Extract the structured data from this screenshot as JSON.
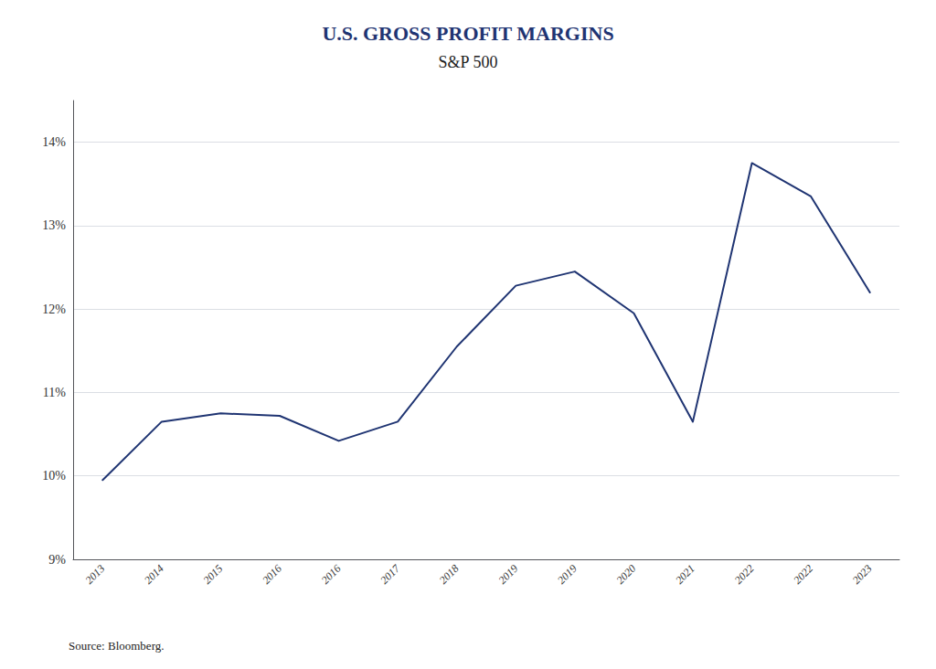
{
  "chart_data": {
    "type": "line",
    "title": "U.S. GROSS PROFIT MARGINS",
    "subtitle": "S&P 500",
    "annotations": [
      "Source: Bloomberg."
    ],
    "categories": [
      "2013",
      "2014",
      "2015",
      "2016",
      "2016",
      "2017",
      "2018",
      "2019",
      "2019",
      "2020",
      "2021",
      "2022",
      "2022",
      "2023"
    ],
    "values": [
      9.95,
      10.65,
      10.75,
      10.72,
      10.42,
      10.65,
      11.55,
      12.28,
      12.45,
      11.95,
      10.65,
      13.75,
      13.35,
      12.2
    ],
    "color": "#1f3472",
    "ylim": [
      9.0,
      14.5
    ],
    "yticks": [
      {
        "value": 9,
        "label": "9%"
      },
      {
        "value": 10,
        "label": "10%"
      },
      {
        "value": 11,
        "label": "11%"
      },
      {
        "value": 12,
        "label": "12%"
      },
      {
        "value": 13,
        "label": "13%"
      },
      {
        "value": 14,
        "label": "14%"
      }
    ],
    "grid": true
  }
}
